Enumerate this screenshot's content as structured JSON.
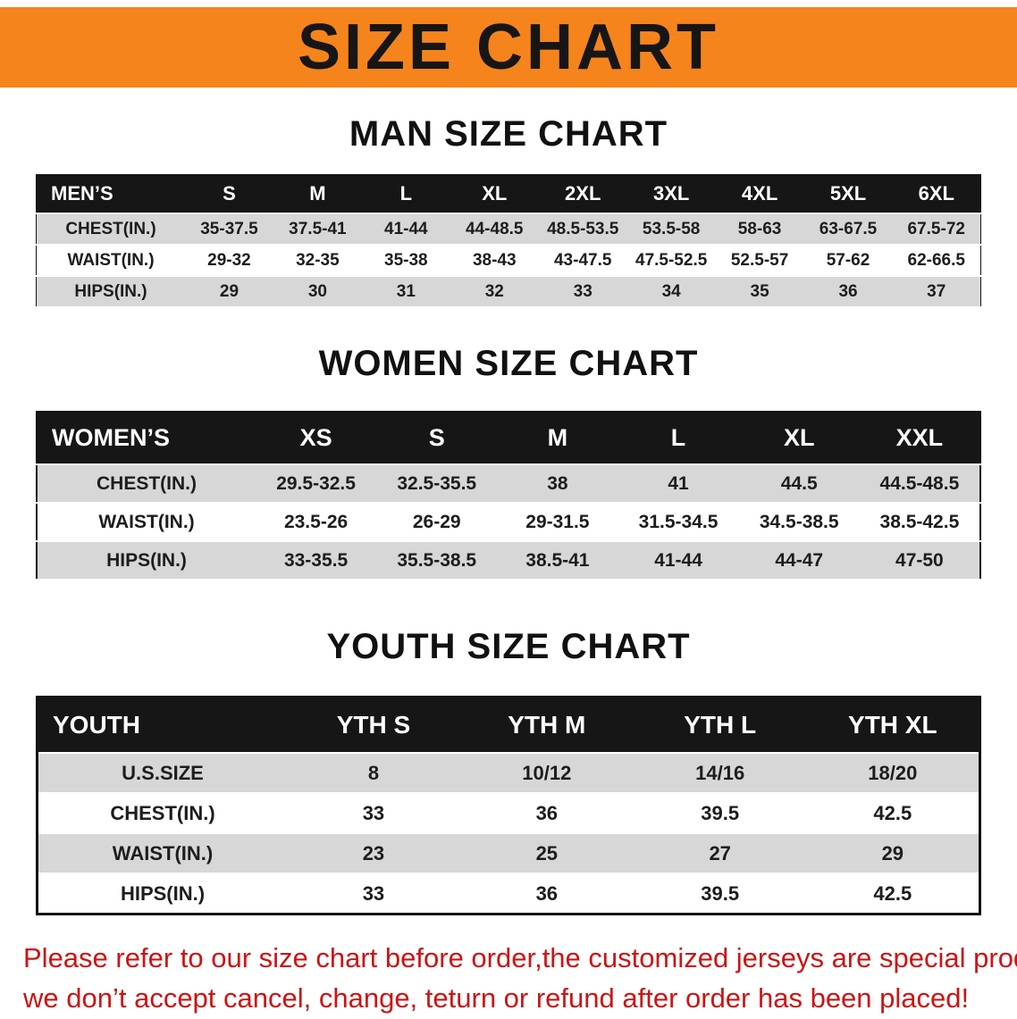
{
  "banner": {
    "title": "SIZE CHART",
    "bg_color": "#f6841c",
    "text_color": "#161616"
  },
  "colors": {
    "table_header_bg": "#161616",
    "table_header_text": "#ffffff",
    "row_alt_gray": "#d7d7d7",
    "footer_text_red": "#cc1414"
  },
  "sections": [
    {
      "heading": "MAN SIZE CHART",
      "table": {
        "header": [
          "MEN’S",
          "S",
          "M",
          "L",
          "XL",
          "2XL",
          "3XL",
          "4XL",
          "5XL",
          "6XL"
        ],
        "rows": [
          [
            "CHEST(IN.)",
            "35-37.5",
            "37.5-41",
            "41-44",
            "44-48.5",
            "48.5-53.5",
            "53.5-58",
            "58-63",
            "63-67.5",
            "67.5-72"
          ],
          [
            "WAIST(IN.)",
            "29-32",
            "32-35",
            "35-38",
            "38-43",
            "43-47.5",
            "47.5-52.5",
            "52.5-57",
            "57-62",
            "62-66.5"
          ],
          [
            "HIPS(IN.)",
            "29",
            "30",
            "31",
            "32",
            "33",
            "34",
            "35",
            "36",
            "37"
          ]
        ]
      }
    },
    {
      "heading": "WOMEN SIZE CHART",
      "table": {
        "header": [
          "WOMEN’S",
          "XS",
          "S",
          "M",
          "L",
          "XL",
          "XXL"
        ],
        "rows": [
          [
            "CHEST(IN.)",
            "29.5-32.5",
            "32.5-35.5",
            "38",
            "41",
            "44.5",
            "44.5-48.5"
          ],
          [
            "WAIST(IN.)",
            "23.5-26",
            "26-29",
            "29-31.5",
            "31.5-34.5",
            "34.5-38.5",
            "38.5-42.5"
          ],
          [
            "HIPS(IN.)",
            "33-35.5",
            "35.5-38.5",
            "38.5-41",
            "41-44",
            "44-47",
            "47-50"
          ]
        ]
      }
    },
    {
      "heading": "YOUTH SIZE CHART",
      "table": {
        "header": [
          "YOUTH",
          "YTH S",
          "YTH M",
          "YTH L",
          "YTH XL"
        ],
        "rows": [
          [
            "U.S.SIZE",
            "8",
            "10/12",
            "14/16",
            "18/20"
          ],
          [
            "CHEST(IN.)",
            "33",
            "36",
            "39.5",
            "42.5"
          ],
          [
            "WAIST(IN.)",
            "23",
            "25",
            "27",
            "29"
          ],
          [
            "HIPS(IN.)",
            "33",
            "36",
            "39.5",
            "42.5"
          ]
        ]
      }
    }
  ],
  "footer_note": {
    "line1": "Please refer to our size chart before order,the customized jerseys are special products,",
    "line2": "we don’t accept cancel, change, teturn or refund after order has been placed!"
  }
}
